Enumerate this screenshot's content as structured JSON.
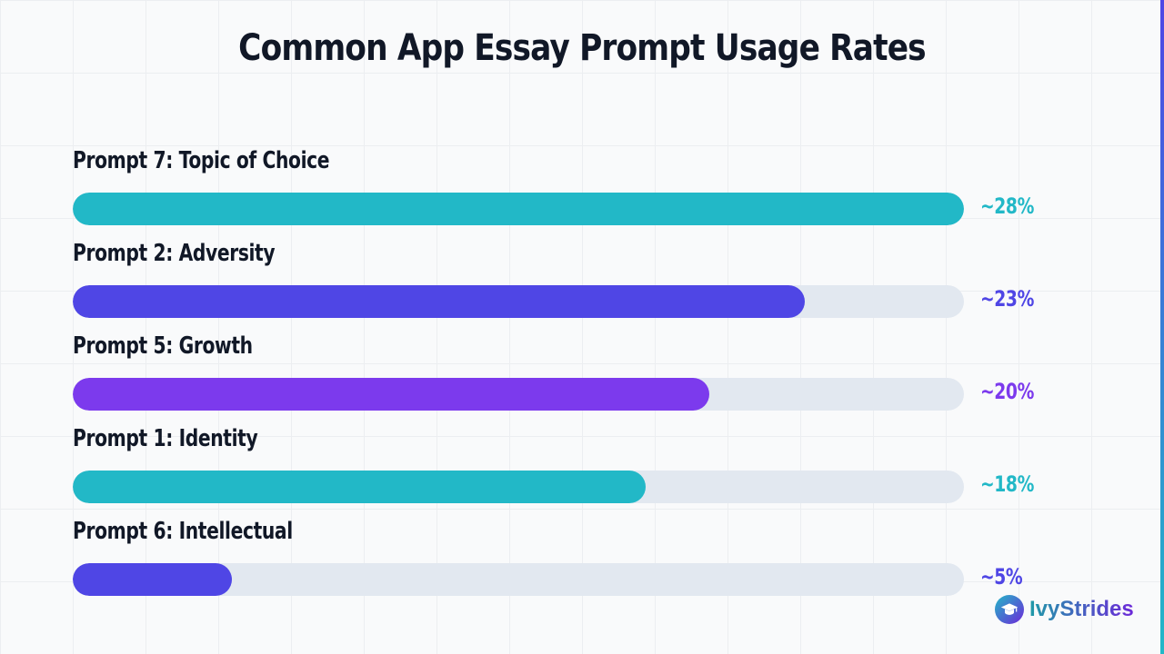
{
  "chart_data": {
    "type": "bar",
    "orientation": "horizontal",
    "title": "Common App Essay Prompt Usage Rates",
    "categories": [
      "Prompt 7: Topic of Choice",
      "Prompt 2: Adversity",
      "Prompt 5: Growth",
      "Prompt 1: Identity",
      "Prompt 6: Intellectual"
    ],
    "values": [
      28,
      23,
      20,
      18,
      5
    ],
    "value_labels": [
      "~28%",
      "~23%",
      "~20%",
      "~18%",
      "~5%"
    ],
    "colors": [
      "#22b8c7",
      "#4f46e5",
      "#7c3aed",
      "#22b8c7",
      "#4f46e5"
    ],
    "xlim": [
      0,
      28
    ],
    "track_color": "#e2e8f0",
    "grid": true
  },
  "brand": {
    "name": "IvyStrides",
    "icon": "graduation-cap-icon"
  }
}
